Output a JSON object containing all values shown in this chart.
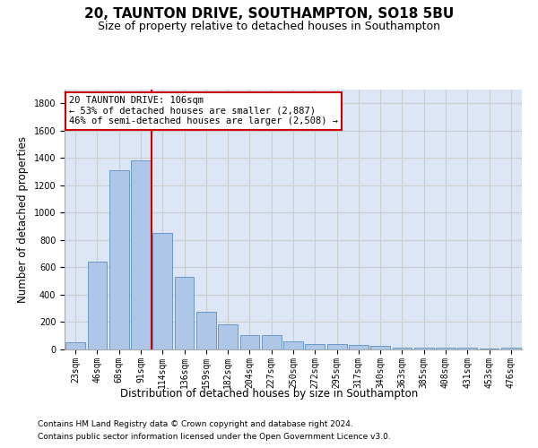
{
  "title_line1": "20, TAUNTON DRIVE, SOUTHAMPTON, SO18 5BU",
  "title_line2": "Size of property relative to detached houses in Southampton",
  "xlabel": "Distribution of detached houses by size in Southampton",
  "ylabel": "Number of detached properties",
  "categories": [
    "23sqm",
    "46sqm",
    "68sqm",
    "91sqm",
    "114sqm",
    "136sqm",
    "159sqm",
    "182sqm",
    "204sqm",
    "227sqm",
    "250sqm",
    "272sqm",
    "295sqm",
    "317sqm",
    "340sqm",
    "363sqm",
    "385sqm",
    "408sqm",
    "431sqm",
    "453sqm",
    "476sqm"
  ],
  "values": [
    50,
    640,
    1310,
    1380,
    850,
    530,
    275,
    185,
    105,
    105,
    60,
    40,
    38,
    30,
    25,
    15,
    15,
    10,
    10,
    5,
    15
  ],
  "bar_color": "#aec6e8",
  "bar_edge_color": "#5a8fc0",
  "vline_color": "#cc0000",
  "annotation_text": "20 TAUNTON DRIVE: 106sqm\n← 53% of detached houses are smaller (2,887)\n46% of semi-detached houses are larger (2,508) →",
  "annotation_box_color": "#cc0000",
  "annotation_bg": "#ffffff",
  "ylim": [
    0,
    1900
  ],
  "yticks": [
    0,
    200,
    400,
    600,
    800,
    1000,
    1200,
    1400,
    1600,
    1800
  ],
  "grid_color": "#cccccc",
  "plot_bg_color": "#dce6f5",
  "footnote1": "Contains HM Land Registry data © Crown copyright and database right 2024.",
  "footnote2": "Contains public sector information licensed under the Open Government Licence v3.0.",
  "title_fontsize": 11,
  "subtitle_fontsize": 9,
  "tick_fontsize": 7,
  "xlabel_fontsize": 8.5,
  "ylabel_fontsize": 8.5,
  "footnote_fontsize": 6.5
}
